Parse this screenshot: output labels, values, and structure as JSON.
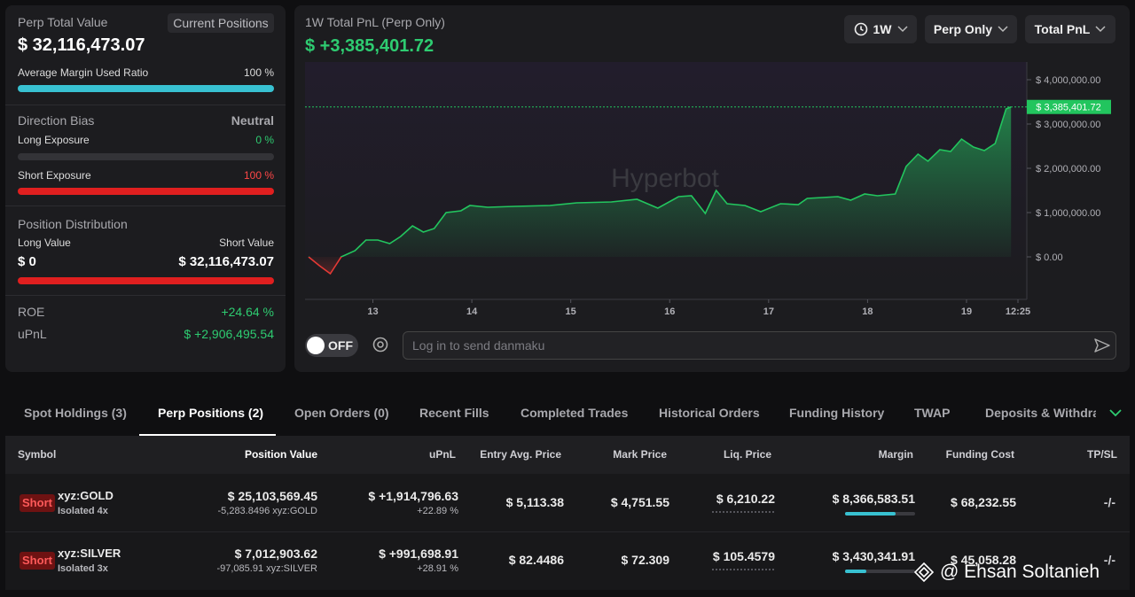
{
  "left_panel": {
    "perp_total_value_label": "Perp Total Value",
    "current_positions": "Current Positions",
    "perp_total_value": "$ 32,116,473.07",
    "avg_margin_label": "Average Margin Used Ratio",
    "avg_margin_value": "100 %",
    "direction_bias_label": "Direction Bias",
    "direction_bias": "Neutral",
    "long_exposure_label": "Long Exposure",
    "long_exposure": "0 %",
    "short_exposure_label": "Short Exposure",
    "short_exposure": "100 %",
    "position_distribution_label": "Position Distribution",
    "long_value_label": "Long Value",
    "short_value_label": "Short Value",
    "long_value": "$ 0",
    "short_value": "$ 32,116,473.07",
    "roe_label": "ROE",
    "roe": "+24.64 %",
    "upnl_label": "uPnL",
    "upnl": "$ +2,906,495.54"
  },
  "chart": {
    "type": "area",
    "title": "1W Total PnL (Perp Only)",
    "total": "$ +3,385,401.72",
    "watermark": "Hyperbot",
    "color": "#22c55e",
    "negative_color": "#e53935",
    "x": [
      12.35,
      12.46,
      12.57,
      12.68,
      12.82,
      12.93,
      13.05,
      13.17,
      13.28,
      13.4,
      13.51,
      13.62,
      13.74,
      13.89,
      13.98,
      14.16,
      14.43,
      14.79,
      15.06,
      15.41,
      15.67,
      15.88,
      16.09,
      16.22,
      16.36,
      16.47,
      16.58,
      16.76,
      16.92,
      17.12,
      17.3,
      17.39,
      17.7,
      17.83,
      17.97,
      18.1,
      18.28,
      18.39,
      18.51,
      18.61,
      18.73,
      18.84,
      18.95,
      19.07,
      19.18,
      19.29,
      19.4,
      19.45
    ],
    "values": [
      0,
      -200000,
      -380000,
      0,
      140000,
      380000,
      380000,
      300000,
      460000,
      700000,
      560000,
      640000,
      1000000,
      1040000,
      1160000,
      1120000,
      1140000,
      1160000,
      1220000,
      1240000,
      1300000,
      1100000,
      1360000,
      1380000,
      980000,
      1500000,
      1200000,
      1160000,
      1020000,
      1200000,
      1180000,
      1320000,
      1360000,
      1280000,
      1420000,
      1380000,
      1420000,
      2040000,
      2320000,
      2160000,
      2420000,
      2380000,
      2660000,
      2480000,
      2400000,
      2560000,
      3340000,
      3385401.72
    ],
    "last_value_label": "$ 3,385,401.72",
    "xlim": [
      12.35,
      19.52
    ],
    "ylim": [
      -960000,
      4400000
    ],
    "xticks": [
      13,
      14,
      15,
      16,
      17,
      18,
      19,
      {
        "value": 19.52,
        "label": "12:25"
      }
    ],
    "yticks": [
      {
        "value": 0,
        "label": "$ 0.00"
      },
      {
        "value": 1000000,
        "label": "$ 1,000,000.00"
      },
      {
        "value": 2000000,
        "label": "$ 2,000,000.00"
      },
      {
        "value": 3000000,
        "label": "$ 3,000,000.00"
      },
      {
        "value": 4000000,
        "label": "$ 4,000,000.00"
      }
    ]
  },
  "controls": {
    "range": "1W",
    "market": "Perp Only",
    "metric": "Total PnL",
    "danmaku_toggle": "OFF",
    "danmaku_placeholder": "Log in to send danmaku"
  },
  "tabs": [
    "Spot Holdings (3)",
    "Perp Positions (2)",
    "Open Orders (0)",
    "Recent Fills",
    "Completed Trades",
    "Historical Orders",
    "Funding History",
    "TWAP",
    "Deposits & Withdraw"
  ],
  "table": {
    "columns": [
      "Symbol",
      "Position Value",
      "uPnL",
      "Entry Avg. Price",
      "Mark Price",
      "Liq. Price",
      "Margin",
      "Funding Cost",
      "TP/SL"
    ],
    "rows": [
      {
        "side": "Short",
        "symbol": "xyz:GOLD",
        "margin_mode": "Isolated 4x",
        "position_value": "$ 25,103,569.45",
        "size": "-5,283.8496 xyz:GOLD",
        "upnl": "$ +1,914,796.63",
        "upnl_pct": "+22.89 %",
        "entry": "$ 5,113.38",
        "mark": "$ 4,751.55",
        "liq": "$ 6,210.22",
        "margin": "$ 8,366,583.51",
        "funding": "$ 68,232.55",
        "tpsl": "-/-"
      },
      {
        "side": "Short",
        "symbol": "xyz:SILVER",
        "margin_mode": "Isolated 3x",
        "position_value": "$ 7,012,903.62",
        "size": "-97,085.91 xyz:SILVER",
        "upnl": "$ +991,698.91",
        "upnl_pct": "+28.91 %",
        "entry": "$ 82.4486",
        "mark": "$ 72.309",
        "liq": "$ 105.4579",
        "margin": "$ 3,430,341.91",
        "funding": "$ 45,058.28",
        "tpsl": "-/-"
      }
    ]
  },
  "watermark": "@ Ehsan Soltanieh"
}
